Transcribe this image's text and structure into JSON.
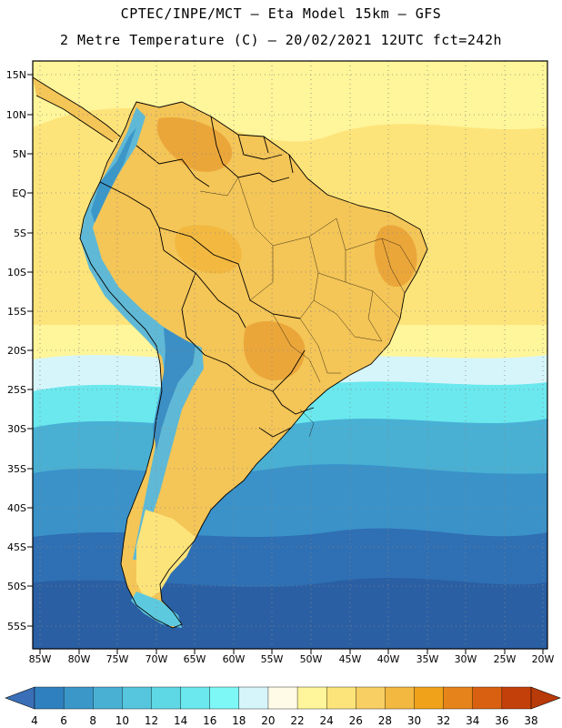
{
  "title_line1": "CPTEC/INPE/MCT –  Eta Model 15km – GFS",
  "title_line2": "2 Metre Temperature (C) – 20/02/2021 12UTC fct=242h",
  "lat_labels": [
    "15N",
    "10N",
    "5N",
    "EQ",
    "5S",
    "10S",
    "15S",
    "20S",
    "25S",
    "30S",
    "35S",
    "40S",
    "45S",
    "50S",
    "55S"
  ],
  "lon_labels": [
    "85W",
    "80W",
    "75W",
    "70W",
    "65W",
    "60W",
    "55W",
    "50W",
    "45W",
    "40W",
    "35W",
    "30W",
    "25W",
    "20W"
  ],
  "colorbar": {
    "ticks": [
      "4",
      "6",
      "8",
      "10",
      "12",
      "14",
      "16",
      "18",
      "20",
      "22",
      "24",
      "26",
      "28",
      "30",
      "32",
      "34",
      "36",
      "38"
    ],
    "colors": [
      "#3a6fb8",
      "#2f80bf",
      "#3c97c9",
      "#49b0d4",
      "#55c6de",
      "#5fd8e6",
      "#6ae8ee",
      "#7ef7f7",
      "#d6f5fa",
      "#fffbe6",
      "#fff59a",
      "#fde47a",
      "#f8cf62",
      "#f2b840",
      "#efa21a",
      "#e6831a",
      "#d86010",
      "#c3400a",
      "#b83a08"
    ]
  },
  "colors": {
    "ocean_deep": "#2f6fb3",
    "ocean_mid": "#3a92c8",
    "ocean_light": "#5dc9df",
    "ocean_pale": "#9ee8ef",
    "ocean_warm": "#fde47a",
    "land": "#f4c557",
    "land_hot": "#eba63a",
    "andes": "#5fb9d6",
    "andes_cold": "#3c8fc4"
  }
}
